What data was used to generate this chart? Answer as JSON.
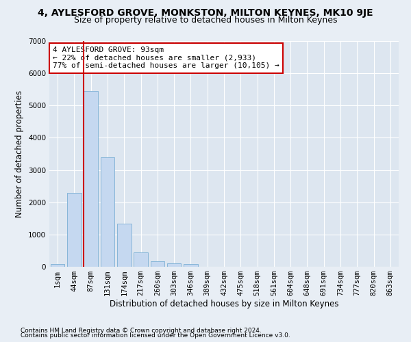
{
  "title": "4, AYLESFORD GROVE, MONKSTON, MILTON KEYNES, MK10 9JE",
  "subtitle": "Size of property relative to detached houses in Milton Keynes",
  "xlabel": "Distribution of detached houses by size in Milton Keynes",
  "ylabel": "Number of detached properties",
  "footnote1": "Contains HM Land Registry data © Crown copyright and database right 2024.",
  "footnote2": "Contains public sector information licensed under the Open Government Licence v3.0.",
  "categories": [
    "1sqm",
    "44sqm",
    "87sqm",
    "131sqm",
    "174sqm",
    "217sqm",
    "260sqm",
    "303sqm",
    "346sqm",
    "389sqm",
    "432sqm",
    "475sqm",
    "518sqm",
    "561sqm",
    "604sqm",
    "648sqm",
    "691sqm",
    "734sqm",
    "777sqm",
    "820sqm",
    "863sqm"
  ],
  "values": [
    80,
    2300,
    5450,
    3400,
    1330,
    450,
    175,
    100,
    80,
    5,
    5,
    2,
    1,
    1,
    1,
    1,
    1,
    1,
    1,
    1,
    1
  ],
  "bar_color": "#c5d8f0",
  "bar_edgecolor": "#7aafd4",
  "vline_color": "#cc0000",
  "annotation_text": "4 AYLESFORD GROVE: 93sqm\n← 22% of detached houses are smaller (2,933)\n77% of semi-detached houses are larger (10,105) →",
  "annotation_box_facecolor": "#ffffff",
  "annotation_box_edgecolor": "#cc0000",
  "ylim": [
    0,
    7000
  ],
  "yticks": [
    0,
    1000,
    2000,
    3000,
    4000,
    5000,
    6000,
    7000
  ],
  "fig_facecolor": "#e8eef5",
  "plot_facecolor": "#dde6f0",
  "title_fontsize": 10,
  "subtitle_fontsize": 9,
  "xlabel_fontsize": 8.5,
  "ylabel_fontsize": 8.5,
  "tick_fontsize": 7.5,
  "annotation_fontsize": 8,
  "footnote_fontsize": 6.5
}
